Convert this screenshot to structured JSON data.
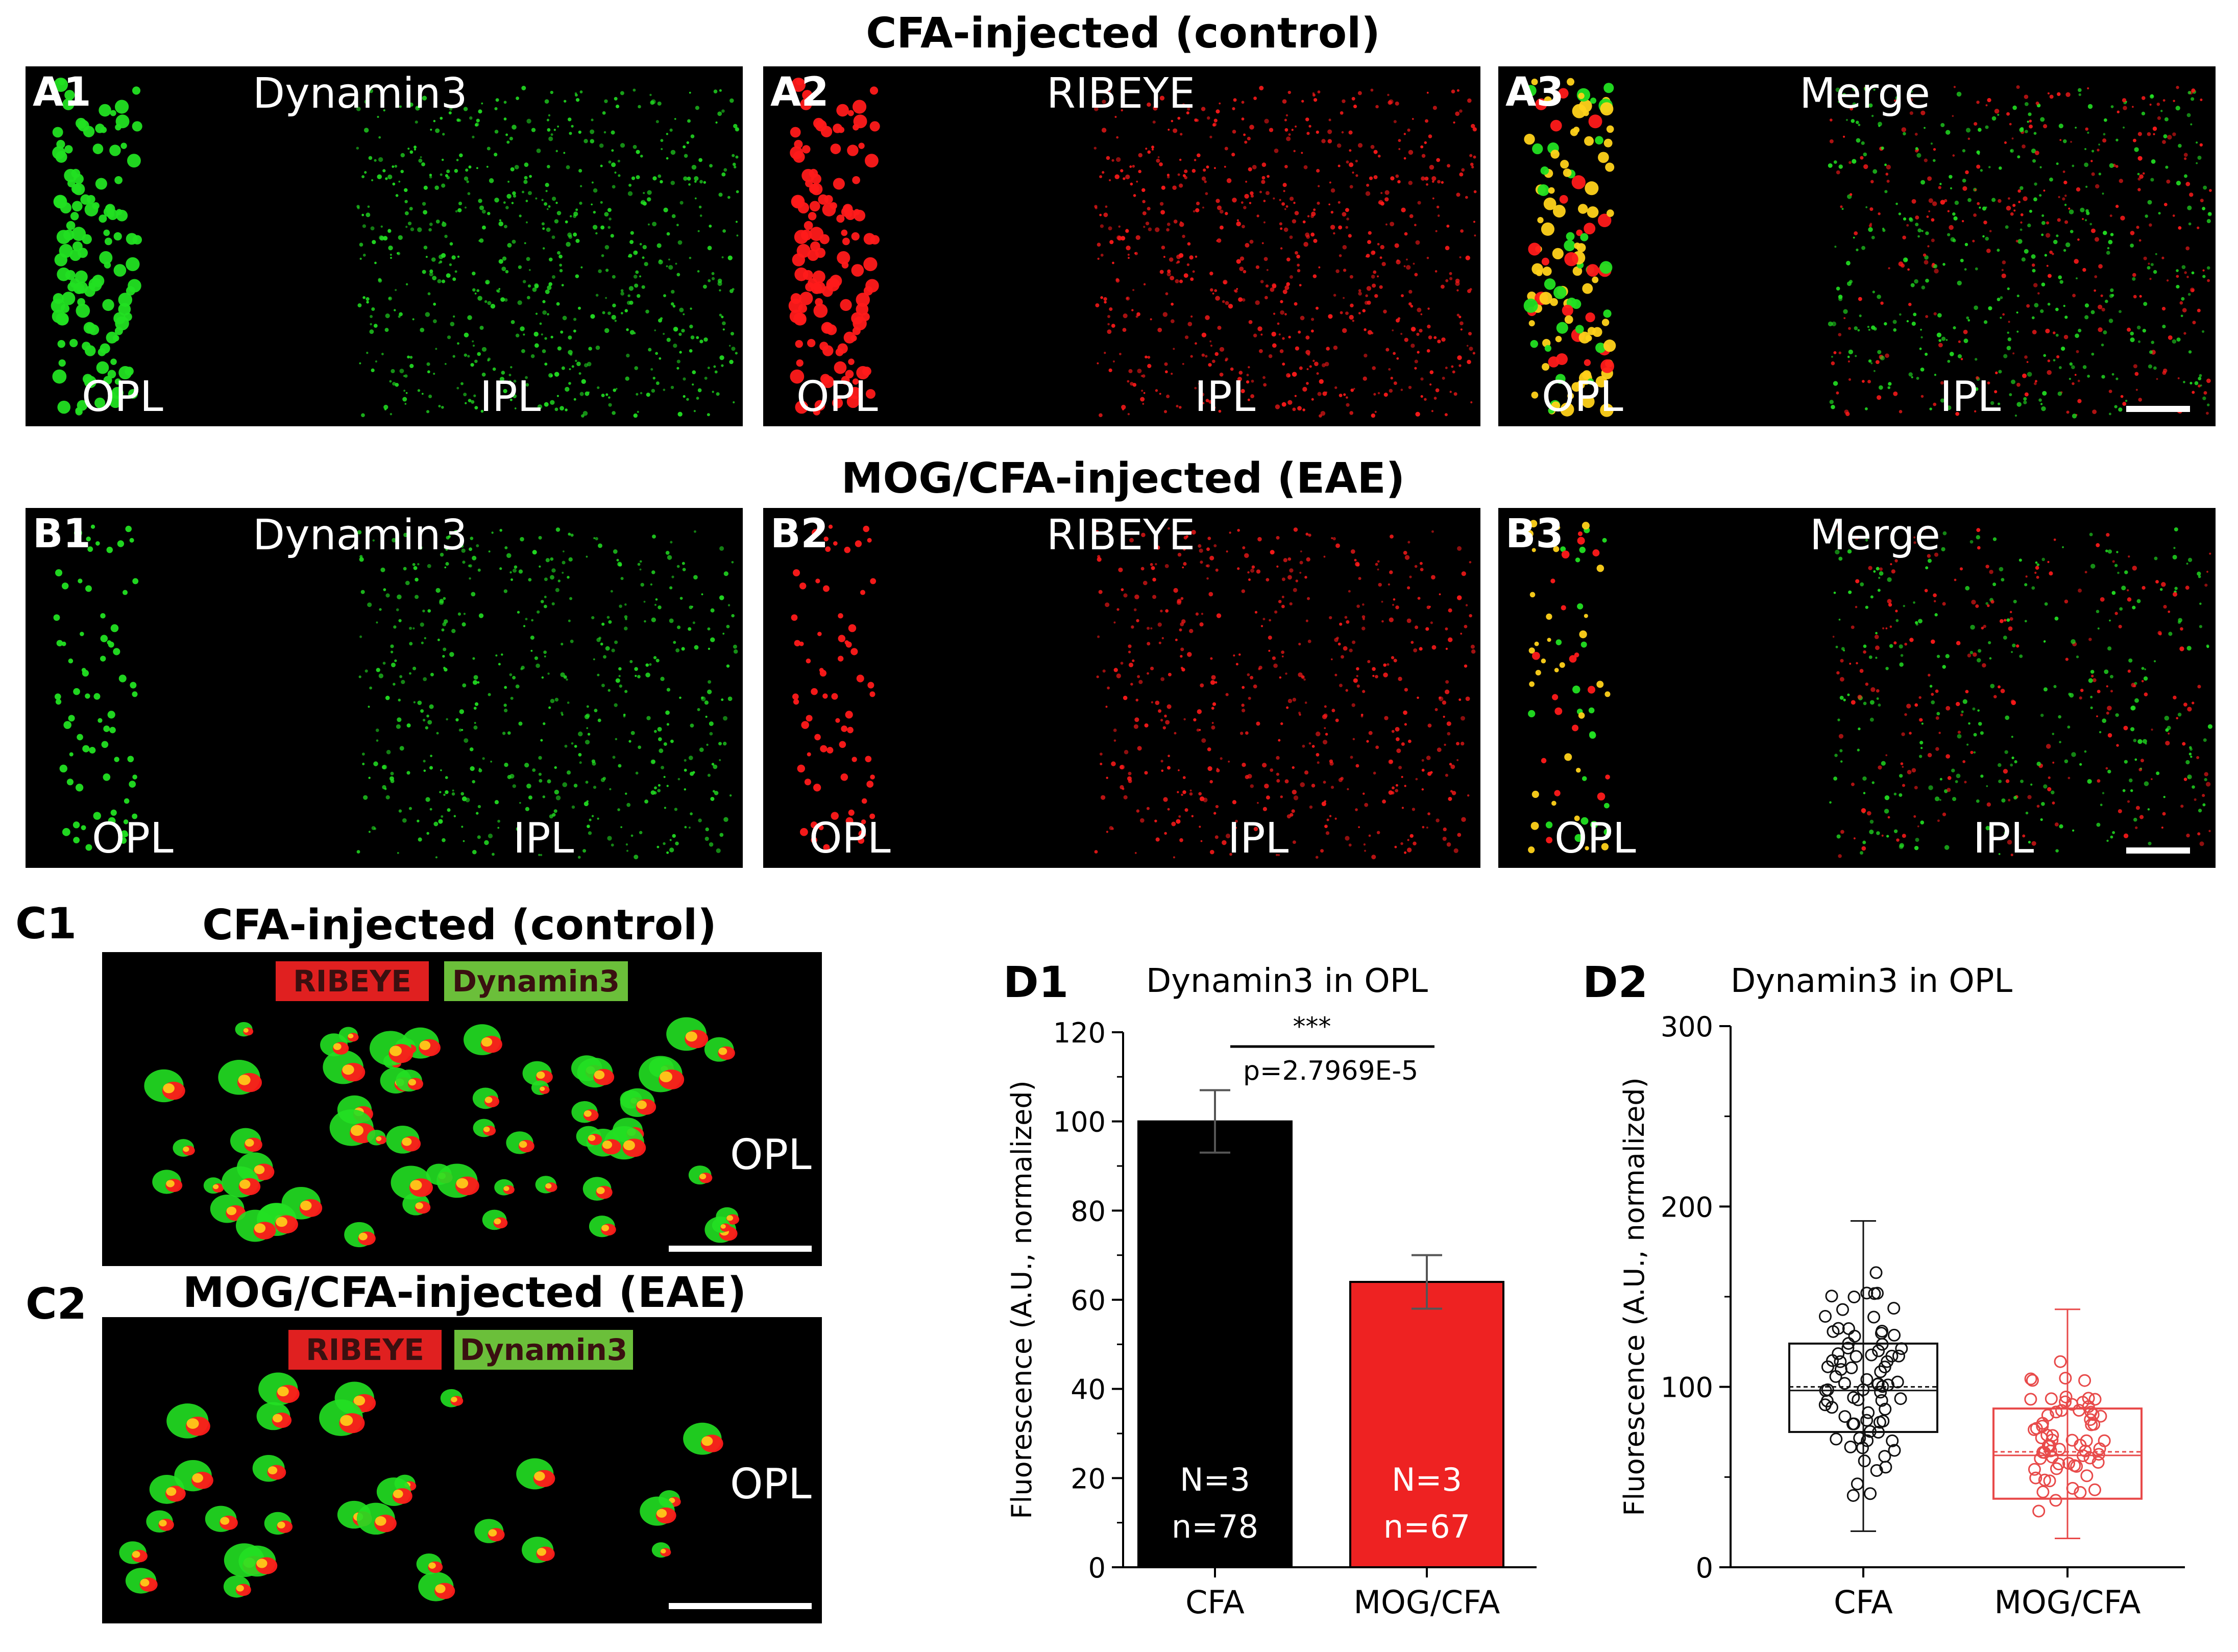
{
  "headers": {
    "row_a": "CFA-injected (control)",
    "row_b": "MOG/CFA-injected (EAE)"
  },
  "panels": {
    "a1": {
      "label": "A1",
      "title": "Dynamin3",
      "opl": "OPL",
      "ipl": "IPL"
    },
    "a2": {
      "label": "A2",
      "title": "RIBEYE",
      "opl": "OPL",
      "ipl": "IPL"
    },
    "a3": {
      "label": "A3",
      "title": "Merge",
      "opl": "OPL",
      "ipl": "IPL"
    },
    "b1": {
      "label": "B1",
      "title": "Dynamin3",
      "opl": "OPL",
      "ipl": "IPL"
    },
    "b2": {
      "label": "B2",
      "title": "RIBEYE",
      "opl": "OPL",
      "ipl": "IPL"
    },
    "b3": {
      "label": "B3",
      "title": "Merge",
      "opl": "OPL",
      "ipl": "IPL"
    }
  },
  "c1": {
    "label": "C1",
    "title": "CFA-injected (control)",
    "legend_red": "RIBEYE",
    "legend_green": "Dynamin3",
    "layer": "OPL"
  },
  "c2": {
    "label": "C2",
    "title": "MOG/CFA-injected (EAE)",
    "legend_red": "RIBEYE",
    "legend_green": "Dynamin3",
    "layer": "OPL"
  },
  "colors": {
    "green": "#22e022",
    "red": "#ff1a1a",
    "bar_cfa": "#000000",
    "bar_mog": "#ee2222",
    "box_mog": "#e84a4a"
  },
  "chart_data": [
    {
      "id": "D1",
      "label": "D1",
      "type": "bar",
      "title": "Dynamin3 in OPL",
      "xlabel": "",
      "ylabel": "Fluorescence (A.U., normalized)",
      "ylim": [
        0,
        120
      ],
      "yticks": [
        "0",
        "20",
        "40",
        "60",
        "80",
        "100",
        "120"
      ],
      "categories": [
        "CFA",
        "MOG/CFA"
      ],
      "values": [
        100,
        64
      ],
      "errors": [
        7,
        6
      ],
      "bar_text": [
        [
          "N=3",
          "n=78"
        ],
        [
          "N=3",
          "n=67"
        ]
      ],
      "significance": {
        "stars": "***",
        "p_text": "p=2.7969E-5"
      }
    },
    {
      "id": "D2",
      "label": "D2",
      "type": "box",
      "title": "Dynamin3 in OPL",
      "xlabel": "",
      "ylabel": "Fluorescence (A.U., normalized)",
      "ylim": [
        0,
        300
      ],
      "yticks": [
        "0",
        "100",
        "200",
        "300"
      ],
      "categories": [
        "CFA",
        "MOG/CFA"
      ],
      "boxes": [
        {
          "name": "CFA",
          "whisker_low": 20,
          "q1": 75,
          "median": 98,
          "mean": 100,
          "q3": 124,
          "whisker_high": 192
        },
        {
          "name": "MOG/CFA",
          "whisker_low": 16,
          "q1": 38,
          "median": 62,
          "mean": 64,
          "q3": 88,
          "whisker_high": 143
        }
      ]
    }
  ]
}
